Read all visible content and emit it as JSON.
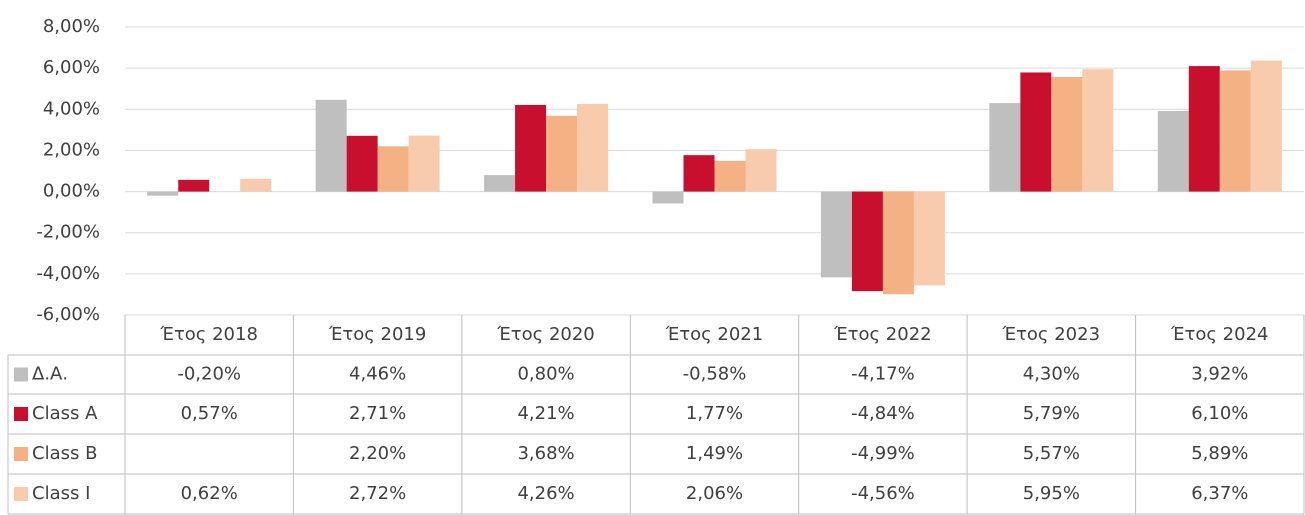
{
  "chart_data": {
    "type": "bar",
    "categories": [
      "Έτος 2018",
      "Έτος 2019",
      "Έτος 2020",
      "Έτος 2021",
      "Έτος 2022",
      "Έτος 2023",
      "Έτος 2024"
    ],
    "series": [
      {
        "name": "Δ.Α.",
        "color": "#bfbfbf",
        "values": [
          -0.2,
          4.46,
          0.8,
          -0.58,
          -4.17,
          4.3,
          3.92
        ],
        "value_labels": [
          "-0,20%",
          "4,46%",
          "0,80%",
          "-0,58%",
          "-4,17%",
          "4,30%",
          "3,92%"
        ]
      },
      {
        "name": "Class A",
        "color": "#c8102e",
        "values": [
          0.57,
          2.71,
          4.21,
          1.77,
          -4.84,
          5.79,
          6.1
        ],
        "value_labels": [
          "0,57%",
          "2,71%",
          "4,21%",
          "1,77%",
          "-4,84%",
          "5,79%",
          "6,10%"
        ]
      },
      {
        "name": "Class B",
        "color": "#f4b183",
        "values": [
          null,
          2.2,
          3.68,
          1.49,
          -4.99,
          5.57,
          5.89
        ],
        "value_labels": [
          null,
          "2,20%",
          "3,68%",
          "1,49%",
          "-4,99%",
          "5,57%",
          "5,89%"
        ]
      },
      {
        "name": "Class I",
        "color": "#f8cbad",
        "values": [
          0.62,
          2.72,
          4.26,
          2.06,
          -4.56,
          5.95,
          6.37
        ],
        "value_labels": [
          "0,62%",
          "2,72%",
          "4,26%",
          "2,06%",
          "-4,56%",
          "5,95%",
          "6,37%"
        ]
      }
    ],
    "ylim": [
      -6,
      8
    ],
    "yticks": [
      {
        "value": -6,
        "label": "-6,00%"
      },
      {
        "value": -4,
        "label": "-4,00%"
      },
      {
        "value": -2,
        "label": "-2,00%"
      },
      {
        "value": 0,
        "label": "0,00%"
      },
      {
        "value": 2,
        "label": "2,00%"
      },
      {
        "value": 4,
        "label": "4,00%"
      },
      {
        "value": 6,
        "label": "6,00%"
      },
      {
        "value": 8,
        "label": "8,00%"
      }
    ],
    "grid": true
  }
}
